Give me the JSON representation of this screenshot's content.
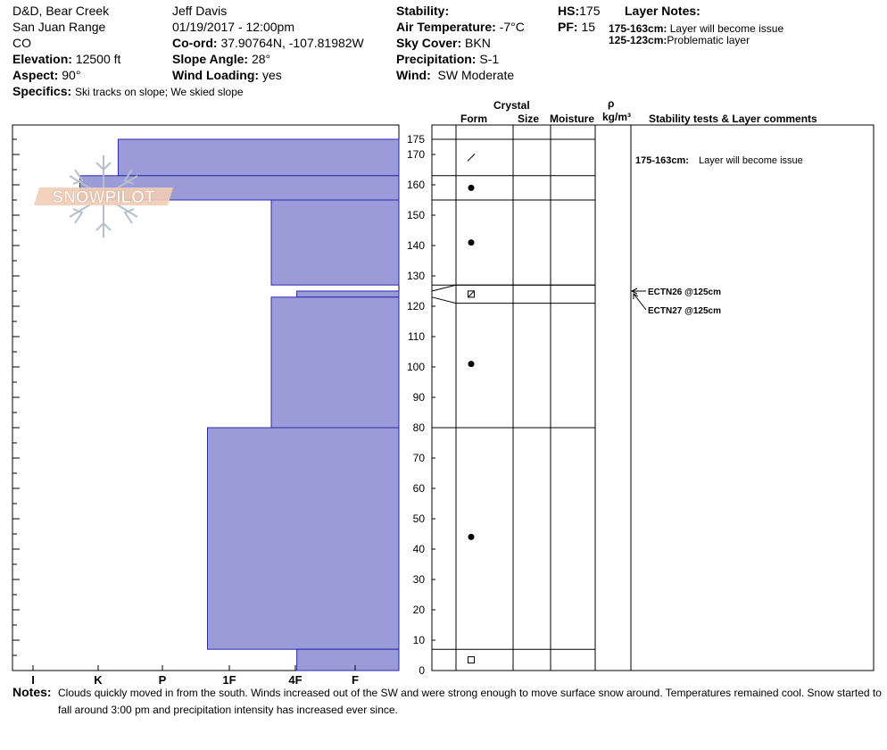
{
  "header": {
    "location": "D&D, Bear Creek",
    "range": "San Juan Range",
    "state": "CO",
    "elevation_label": "Elevation:",
    "elevation_value": "12500 ft",
    "aspect_label": "Aspect:",
    "aspect_value": "90°",
    "observer": "Jeff Davis",
    "datetime": "01/19/2017 - 12:00pm",
    "coord_label": "Co-ord:",
    "coord_value": "37.90764N, -107.81982W",
    "slope_label": "Slope Angle:",
    "slope_value": "28°",
    "wind_loading_label": "Wind Loading:",
    "wind_loading_value": "yes",
    "stability_label": "Stability:",
    "air_temp_label": "Air Temperature:",
    "air_temp_value": "-7°C",
    "sky_label": "Sky Cover:",
    "sky_value": "BKN",
    "precip_label": "Precipitation:",
    "precip_value": "S-1",
    "wind_label": "Wind:",
    "wind_value": "SW Moderate",
    "hs_label": "HS:",
    "hs_value": "175",
    "pf_label": "PF:",
    "pf_value": "15",
    "layer_notes_title": "Layer Notes:",
    "layer_notes": [
      {
        "range": "175-163cm:",
        "text": "Layer will become issue"
      },
      {
        "range": "125-123cm:",
        "text": "Problematic layer"
      }
    ],
    "specifics_label": "Specifics:",
    "specifics_value": "Ski tracks on slope; We skied slope"
  },
  "columns": {
    "crystal": "Crystal",
    "form": "Form",
    "size": "Size",
    "moisture": "Moisture",
    "rho": "ρ",
    "density_unit": "kg/m³",
    "stability": "Stability tests & Layer comments"
  },
  "logo_text": "SNOWPILOT",
  "notes_label": "Notes:",
  "notes_text": "Clouds quickly moved in from the south. Winds increased out of the SW and were strong enough to move surface snow around. Temperatures remained cool. Snow started to fall around 3:00 pm and precipitation intensity has increased ever since.",
  "chart_data": {
    "type": "snow-profile",
    "total_height_cm": 175,
    "depth_axis": {
      "min": 0,
      "max": 175,
      "ticks": [
        0,
        10,
        20,
        30,
        40,
        50,
        60,
        70,
        80,
        90,
        100,
        110,
        120,
        130,
        140,
        150,
        160,
        170,
        175
      ]
    },
    "hardness_ticks": [
      "I",
      "K",
      "P",
      "1F",
      "4F",
      "F"
    ],
    "layers": [
      {
        "top": 175,
        "bottom": 163,
        "hardness": 4.4,
        "form": "decomposing"
      },
      {
        "top": 163,
        "bottom": 155,
        "hardness": 5.0,
        "form": "round"
      },
      {
        "top": 155,
        "bottom": 127,
        "hardness": 2.0,
        "form": "round"
      },
      {
        "top": 127,
        "bottom": 125,
        "hardness": 0.0,
        "form": "none"
      },
      {
        "top": 125,
        "bottom": 123,
        "hardness": 1.6,
        "form": "faceted-rounded"
      },
      {
        "top": 123,
        "bottom": 80,
        "hardness": 2.0,
        "form": "round"
      },
      {
        "top": 80,
        "bottom": 7,
        "hardness": 3.0,
        "form": "round"
      },
      {
        "top": 7,
        "bottom": 0,
        "hardness": 1.6,
        "form": "facet"
      }
    ],
    "stability_comments": [
      {
        "text": "175-163cm:",
        "detail": "Layer will become issue",
        "depth": 169
      },
      {
        "text": "ECTN26 @125cm",
        "depth": 125
      },
      {
        "text": "ECTN27 @125cm",
        "depth": 125
      }
    ]
  }
}
